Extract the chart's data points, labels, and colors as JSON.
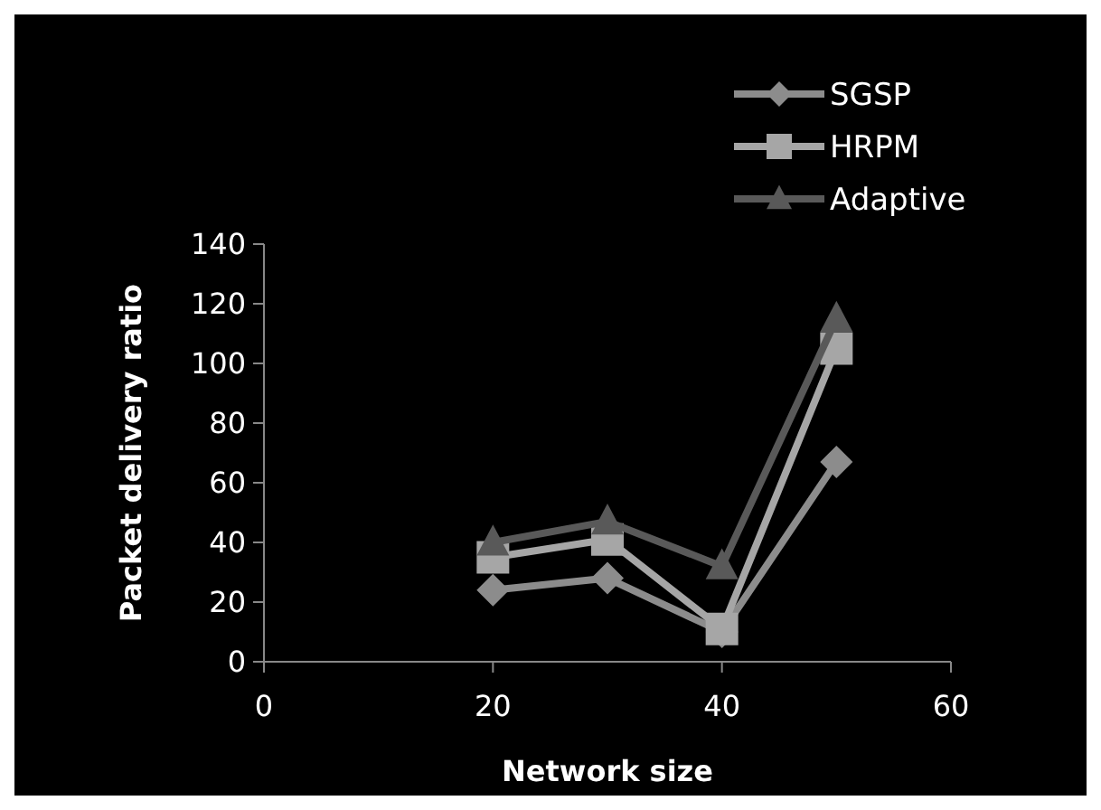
{
  "chart_data": {
    "type": "line",
    "xlabel": "Network size",
    "ylabel": "Packet delivery ratio",
    "x": [
      20,
      30,
      40,
      50
    ],
    "xlim": [
      0,
      60
    ],
    "xticks": [
      0,
      20,
      40,
      60
    ],
    "ylim": [
      0,
      140
    ],
    "yticks": [
      0,
      20,
      40,
      60,
      80,
      100,
      120,
      140
    ],
    "grid": false,
    "legend": "top right",
    "line_style": "solid",
    "series": [
      {
        "name": "SGSP",
        "color": "#8c8c8c",
        "marker": "diamond",
        "values": [
          24,
          28,
          10,
          67
        ]
      },
      {
        "name": "HRPM",
        "color": "#a6a6a6",
        "marker": "square",
        "values": [
          35,
          41,
          11,
          105
        ]
      },
      {
        "name": "Adaptive",
        "color": "#595959",
        "marker": "triangle",
        "values": [
          40,
          47,
          32,
          115
        ]
      }
    ]
  }
}
